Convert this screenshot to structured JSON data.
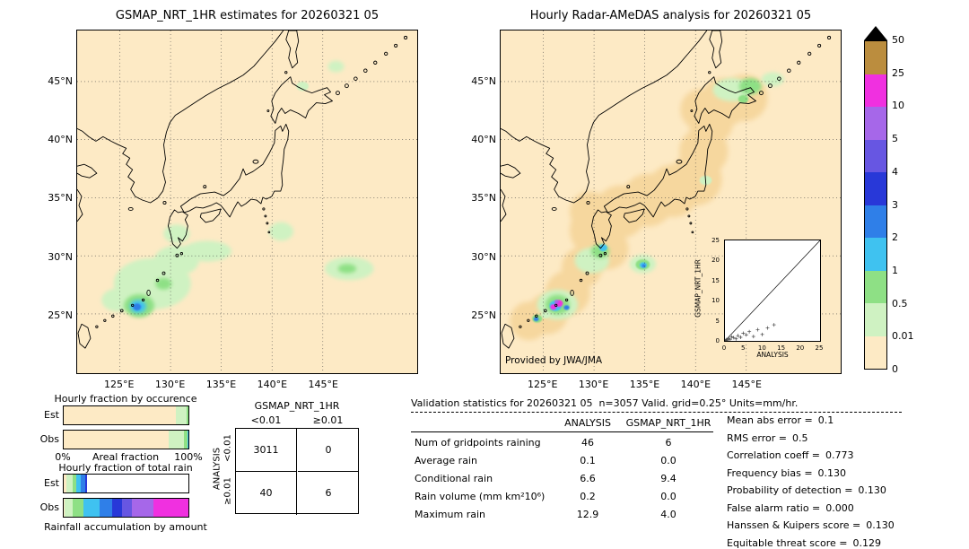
{
  "palette": {
    "map_bg": "#fdeac5",
    "radar_coverage": "#f6d79e",
    "over_color": "#000000"
  },
  "colorbar": {
    "labels": [
      "50",
      "25",
      "10",
      "5",
      "4",
      "3",
      "2",
      "1",
      "0.5",
      "0.01",
      "0"
    ],
    "band_colors_top_to_bottom": [
      "#bb8d3e",
      "#f030e0",
      "#a667e9",
      "#6756e2",
      "#2838d8",
      "#2f7fe8",
      "#3fc2f0",
      "#8ee085",
      "#cff2c2",
      "#fdeac5"
    ]
  },
  "left_map": {
    "title": "GSMAP_NRT_1HR estimates for 20260321 05",
    "lon_tick_labels": [
      "125°E",
      "130°E",
      "135°E",
      "140°E",
      "145°E"
    ],
    "lat_tick_labels": [
      "45°N",
      "40°N",
      "35°N",
      "30°N",
      "25°N"
    ]
  },
  "right_map": {
    "title": "Hourly Radar-AMeDAS analysis for 20260321 05",
    "credit": "Provided by JWA/JMA",
    "lon_tick_labels": [
      "125°E",
      "130°E",
      "135°E",
      "140°E",
      "145°E"
    ],
    "lat_tick_labels": [
      "45°N",
      "40°N",
      "35°N",
      "30°N",
      "25°N"
    ],
    "inset": {
      "xlabel": "ANALYSIS",
      "ylabel": "GSMAP_NRT_1HR",
      "tick_labels": [
        "0",
        "5",
        "10",
        "15",
        "20",
        "25"
      ]
    }
  },
  "fraction_panel": {
    "occurrence_title": "Hourly fraction by occurence",
    "totalrain_title": "Hourly fraction of total rain",
    "row_labels": [
      "Est",
      "Obs"
    ],
    "axis_left": "0%",
    "axis_label": "Areal fraction",
    "axis_right": "100%",
    "caption": "Rainfall accumulation by amount"
  },
  "contingency": {
    "col_group_label": "GSMAP_NRT_1HR",
    "row_group_label": "ANALYSIS",
    "col_labels": [
      "<0.01",
      "≥0.01"
    ],
    "row_labels": [
      "<0.01",
      "≥0.01"
    ],
    "values": [
      [
        "3011",
        "0"
      ],
      [
        "40",
        "6"
      ]
    ]
  },
  "stats": {
    "title": "Validation statistics for 20260321 05  n=3057 Valid. grid=0.25° Units=mm/hr.",
    "col_headers": [
      "ANALYSIS",
      "GSMAP_NRT_1HR"
    ],
    "rows": [
      {
        "label": "Num of gridpoints raining",
        "analysis": "46",
        "gsmap": "6"
      },
      {
        "label": "Average rain",
        "analysis": "0.1",
        "gsmap": "0.0"
      },
      {
        "label": "Conditional rain",
        "analysis": "6.6",
        "gsmap": "9.4"
      },
      {
        "label": "Rain volume (mm km²10⁶)",
        "analysis": "0.2",
        "gsmap": "0.0"
      },
      {
        "label": "Maximum rain",
        "analysis": "12.9",
        "gsmap": "4.0"
      }
    ],
    "metrics": [
      {
        "label": "Mean abs error =",
        "value": "0.1"
      },
      {
        "label": "RMS error =",
        "value": "0.5"
      },
      {
        "label": "Correlation coeff =",
        "value": "0.773"
      },
      {
        "label": "Frequency bias =",
        "value": "0.130"
      },
      {
        "label": "Probability of detection =",
        "value": "0.130"
      },
      {
        "label": "False alarm ratio =",
        "value": "0.000"
      },
      {
        "label": "Hanssen & Kuipers score =",
        "value": "0.130"
      },
      {
        "label": "Equitable threat score =",
        "value": "0.129"
      }
    ]
  },
  "chart_data": [
    {
      "type": "heatmap",
      "name": "gsmap_precip_map",
      "title": "GSMAP_NRT_1HR estimates for 20260321 05",
      "units": "mm/hr",
      "extent": {
        "lon_min": 120.8,
        "lon_max": 154.3,
        "lat_min": 19.9,
        "lat_max": 49.4
      },
      "lon_ticks": [
        125,
        130,
        135,
        140,
        145
      ],
      "lat_ticks": [
        45,
        40,
        35,
        30,
        25
      ],
      "precip_blobs": [
        {
          "lon": 128.2,
          "lat": 27.6,
          "rx": 3.8,
          "ry": 2.2,
          "color": "#cff2c2"
        },
        {
          "lon": 124.8,
          "lat": 26.2,
          "rx": 1.6,
          "ry": 1.0,
          "color": "#cff2c2"
        },
        {
          "lon": 130.6,
          "lat": 29.6,
          "rx": 2.2,
          "ry": 1.3,
          "color": "#cff2c2"
        },
        {
          "lon": 133.6,
          "lat": 30.4,
          "rx": 2.4,
          "ry": 0.9,
          "color": "#cff2c2"
        },
        {
          "lon": 130.6,
          "lat": 31.9,
          "rx": 1.3,
          "ry": 0.8,
          "color": "#cff2c2"
        },
        {
          "lon": 140.9,
          "lat": 32.1,
          "rx": 1.2,
          "ry": 0.8,
          "color": "#cff2c2"
        },
        {
          "lon": 147.6,
          "lat": 28.9,
          "rx": 2.4,
          "ry": 1.0,
          "color": "#cff2c2"
        },
        {
          "lon": 147.4,
          "lat": 28.9,
          "rx": 0.9,
          "ry": 0.4,
          "color": "#8ee085"
        },
        {
          "lon": 129.3,
          "lat": 27.6,
          "rx": 0.8,
          "ry": 0.5,
          "color": "#8ee085"
        },
        {
          "lon": 126.9,
          "lat": 25.7,
          "rx": 1.5,
          "ry": 1.0,
          "color": "#8ee085"
        },
        {
          "lon": 126.8,
          "lat": 25.65,
          "rx": 0.8,
          "ry": 0.55,
          "color": "#3fc2f0"
        },
        {
          "lon": 126.7,
          "lat": 25.6,
          "rx": 0.4,
          "ry": 0.3,
          "color": "#2f7fe8"
        },
        {
          "lon": 146.3,
          "lat": 46.3,
          "rx": 0.8,
          "ry": 0.5,
          "color": "#cff2c2"
        },
        {
          "lon": 143.0,
          "lat": 44.6,
          "rx": 0.6,
          "ry": 0.4,
          "color": "#cff2c2"
        }
      ]
    },
    {
      "type": "heatmap",
      "name": "radar_amedas_map",
      "title": "Hourly Radar-AMeDAS analysis for 20260321 05",
      "units": "mm/hr",
      "extent": {
        "lon_min": 120.8,
        "lon_max": 154.3,
        "lat_min": 19.9,
        "lat_max": 49.4
      },
      "lon_ticks": [
        125,
        130,
        135,
        140,
        145
      ],
      "lat_ticks": [
        45,
        40,
        35,
        30,
        25
      ],
      "coverage_circles": [
        {
          "lon": 130.2,
          "lat": 32.2,
          "r": 2.6
        },
        {
          "lon": 132.6,
          "lat": 33.8,
          "r": 2.6
        },
        {
          "lon": 135.3,
          "lat": 34.8,
          "r": 2.6
        },
        {
          "lon": 137.8,
          "lat": 35.6,
          "r": 2.6
        },
        {
          "lon": 140.0,
          "lat": 36.6,
          "r": 2.6
        },
        {
          "lon": 140.8,
          "lat": 39.0,
          "r": 2.4
        },
        {
          "lon": 141.5,
          "lat": 41.5,
          "r": 2.2
        },
        {
          "lon": 142.8,
          "lat": 43.2,
          "r": 2.4
        },
        {
          "lon": 144.8,
          "lat": 43.6,
          "r": 2.3
        },
        {
          "lon": 140.5,
          "lat": 42.6,
          "r": 2.0
        },
        {
          "lon": 128.8,
          "lat": 29.0,
          "r": 2.0
        },
        {
          "lon": 127.4,
          "lat": 26.8,
          "r": 2.2
        },
        {
          "lon": 125.4,
          "lat": 25.0,
          "r": 2.0
        },
        {
          "lon": 123.6,
          "lat": 24.4,
          "r": 1.9
        },
        {
          "lon": 131.4,
          "lat": 30.6,
          "r": 2.0
        },
        {
          "lon": 129.6,
          "lat": 33.8,
          "r": 2.0
        }
      ],
      "precip_blobs": [
        {
          "lon": 126.4,
          "lat": 25.8,
          "rx": 2.0,
          "ry": 1.3,
          "color": "#cff2c2"
        },
        {
          "lon": 126.4,
          "lat": 25.8,
          "rx": 1.2,
          "ry": 0.85,
          "color": "#8ee085"
        },
        {
          "lon": 126.2,
          "lat": 25.7,
          "rx": 0.6,
          "ry": 0.45,
          "color": "#3fc2f0"
        },
        {
          "lon": 126.55,
          "lat": 25.9,
          "rx": 0.38,
          "ry": 0.3,
          "color": "#f030e0"
        },
        {
          "lon": 126.0,
          "lat": 25.6,
          "rx": 0.3,
          "ry": 0.24,
          "color": "#f030e0"
        },
        {
          "lon": 126.3,
          "lat": 26.05,
          "rx": 0.2,
          "ry": 0.16,
          "color": "#a667e9"
        },
        {
          "lon": 127.3,
          "lat": 25.55,
          "rx": 0.28,
          "ry": 0.2,
          "color": "#2f7fe8"
        },
        {
          "lon": 124.4,
          "lat": 24.6,
          "rx": 0.5,
          "ry": 0.35,
          "color": "#8ee085"
        },
        {
          "lon": 124.3,
          "lat": 24.55,
          "rx": 0.25,
          "ry": 0.18,
          "color": "#2f7fe8"
        },
        {
          "lon": 125.2,
          "lat": 24.9,
          "rx": 0.4,
          "ry": 0.28,
          "color": "#cff2c2"
        },
        {
          "lon": 129.8,
          "lat": 29.6,
          "rx": 1.7,
          "ry": 1.1,
          "color": "#cff2c2"
        },
        {
          "lon": 130.6,
          "lat": 30.4,
          "rx": 0.9,
          "ry": 0.6,
          "color": "#8ee085"
        },
        {
          "lon": 130.9,
          "lat": 30.7,
          "rx": 0.4,
          "ry": 0.3,
          "color": "#3fc2f0"
        },
        {
          "lon": 134.8,
          "lat": 29.3,
          "rx": 1.3,
          "ry": 0.8,
          "color": "#cff2c2"
        },
        {
          "lon": 134.8,
          "lat": 29.25,
          "rx": 0.7,
          "ry": 0.45,
          "color": "#8ee085"
        },
        {
          "lon": 134.85,
          "lat": 29.2,
          "rx": 0.35,
          "ry": 0.25,
          "color": "#3fc2f0"
        },
        {
          "lon": 134.9,
          "lat": 29.15,
          "rx": 0.18,
          "ry": 0.14,
          "color": "#2f7fe8"
        },
        {
          "lon": 143.6,
          "lat": 44.3,
          "rx": 1.9,
          "ry": 1.0,
          "color": "#cff2c2"
        },
        {
          "lon": 145.4,
          "lat": 44.6,
          "rx": 1.1,
          "ry": 0.7,
          "color": "#8ee085"
        },
        {
          "lon": 144.7,
          "lat": 43.5,
          "rx": 0.5,
          "ry": 0.35,
          "color": "#8ee085"
        },
        {
          "lon": 147.6,
          "lat": 45.2,
          "rx": 1.1,
          "ry": 0.6,
          "color": "#cff2c2"
        },
        {
          "lon": 141.0,
          "lat": 36.5,
          "rx": 0.6,
          "ry": 0.4,
          "color": "#cff2c2"
        }
      ]
    },
    {
      "type": "scatter",
      "name": "inset_comparison",
      "xlabel": "ANALYSIS",
      "ylabel": "GSMAP_NRT_1HR",
      "xlim": [
        0,
        25
      ],
      "ylim": [
        0,
        25
      ],
      "ticks": [
        0,
        5,
        10,
        15,
        20,
        25
      ],
      "diagonal": true,
      "points": [
        [
          0.2,
          0.1
        ],
        [
          0.4,
          0.3
        ],
        [
          0.7,
          0.2
        ],
        [
          1.0,
          0.6
        ],
        [
          1.4,
          0.4
        ],
        [
          1.8,
          1.0
        ],
        [
          2.3,
          0.8
        ],
        [
          2.9,
          0.5
        ],
        [
          3.4,
          1.3
        ],
        [
          4.1,
          0.9
        ],
        [
          4.8,
          1.9
        ],
        [
          5.6,
          1.5
        ],
        [
          6.4,
          2.3
        ],
        [
          7.5,
          1.1
        ],
        [
          8.6,
          2.8
        ],
        [
          9.8,
          1.6
        ],
        [
          11.2,
          3.2
        ],
        [
          12.9,
          4.0
        ]
      ]
    },
    {
      "type": "bar",
      "name": "hourly_fraction_by_occurrence",
      "title": "Hourly fraction by occurence",
      "xlabel": "Areal fraction",
      "xlim_labels": [
        "0%",
        "100%"
      ],
      "rows": [
        {
          "label": "Est",
          "segments": [
            {
              "color": "#fdeac5",
              "pct": 90
            },
            {
              "color": "#cff2c2",
              "pct": 8.5
            },
            {
              "color": "#8ee085",
              "pct": 1.5
            }
          ]
        },
        {
          "label": "Obs",
          "segments": [
            {
              "color": "#fdeac5",
              "pct": 84
            },
            {
              "color": "#cff2c2",
              "pct": 12.5
            },
            {
              "color": "#8ee085",
              "pct": 2.5
            },
            {
              "color": "#3fc2f0",
              "pct": 1
            }
          ]
        }
      ]
    },
    {
      "type": "bar",
      "name": "hourly_fraction_of_total_rain",
      "title": "Hourly fraction of total rain",
      "caption": "Rainfall accumulation by amount",
      "rows": [
        {
          "label": "Est",
          "segments": [
            {
              "color": "#fdeac5",
              "pct": 2
            },
            {
              "color": "#cff2c2",
              "pct": 5
            },
            {
              "color": "#8ee085",
              "pct": 3
            },
            {
              "color": "#3fc2f0",
              "pct": 4
            },
            {
              "color": "#2f7fe8",
              "pct": 3
            },
            {
              "color": "#2838d8",
              "pct": 2
            },
            {
              "color": "#ffffff",
              "pct": 81
            }
          ]
        },
        {
          "label": "Obs",
          "segments": [
            {
              "color": "#fdeac5",
              "pct": 1
            },
            {
              "color": "#cff2c2",
              "pct": 6
            },
            {
              "color": "#8ee085",
              "pct": 9
            },
            {
              "color": "#3fc2f0",
              "pct": 13
            },
            {
              "color": "#2f7fe8",
              "pct": 10
            },
            {
              "color": "#2838d8",
              "pct": 8
            },
            {
              "color": "#6756e2",
              "pct": 8
            },
            {
              "color": "#a667e9",
              "pct": 17
            },
            {
              "color": "#f030e0",
              "pct": 28
            }
          ]
        }
      ]
    },
    {
      "type": "table",
      "name": "contingency_table",
      "columns": [
        "GSMAP_NRT_1HR <0.01",
        "GSMAP_NRT_1HR ≥0.01"
      ],
      "rows": [
        "ANALYSIS <0.01",
        "ANALYSIS ≥0.01"
      ],
      "values": [
        [
          3011,
          0
        ],
        [
          40,
          6
        ]
      ]
    },
    {
      "type": "table",
      "name": "validation_statistics",
      "title": "Validation statistics for 20260321 05  n=3057 Valid. grid=0.25° Units=mm/hr.",
      "columns": [
        "",
        "ANALYSIS",
        "GSMAP_NRT_1HR"
      ],
      "rows": [
        [
          "Num of gridpoints raining",
          46,
          6
        ],
        [
          "Average rain",
          0.1,
          0.0
        ],
        [
          "Conditional rain",
          6.6,
          9.4
        ],
        [
          "Rain volume (mm km²10⁶)",
          0.2,
          0.0
        ],
        [
          "Maximum rain",
          12.9,
          4.0
        ]
      ],
      "metrics": {
        "Mean abs error": 0.1,
        "RMS error": 0.5,
        "Correlation coeff": 0.773,
        "Frequency bias": 0.13,
        "Probability of detection": 0.13,
        "False alarm ratio": 0.0,
        "Hanssen & Kuipers score": 0.13,
        "Equitable threat score": 0.129
      }
    }
  ]
}
